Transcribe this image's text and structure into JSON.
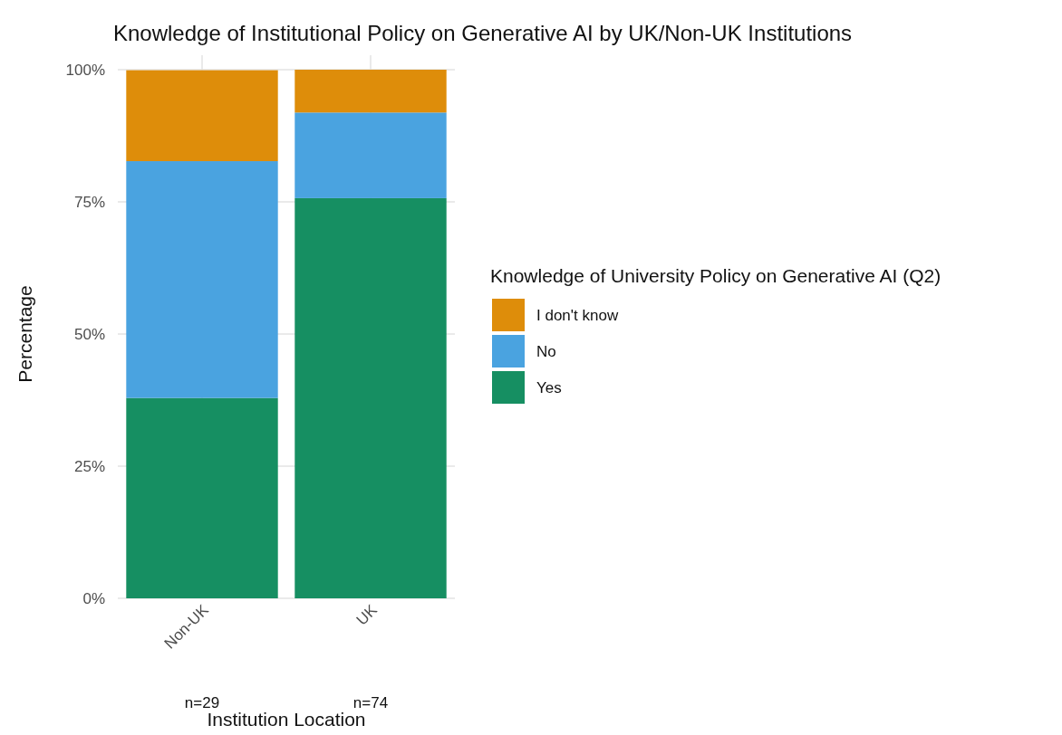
{
  "chart_data": {
    "type": "bar",
    "title": "Knowledge of Institutional Policy on Generative AI by UK/Non-UK Institutions",
    "xlabel": "Institution Location",
    "ylabel": "Percentage",
    "legend_title": "Knowledge of University Policy on Generative AI (Q2)",
    "categories": [
      "Non-UK",
      "UK"
    ],
    "stacked": true,
    "series": [
      {
        "name": "Yes",
        "color": "#168f62",
        "values": [
          37.9,
          75.7
        ]
      },
      {
        "name": "No",
        "color": "#4aa3e0",
        "values": [
          44.8,
          16.2
        ]
      },
      {
        "name": "I don't know",
        "color": "#de8d0a",
        "values": [
          17.2,
          8.1
        ]
      }
    ],
    "ylim": [
      0,
      100
    ],
    "yticks": [
      {
        "value": 0,
        "label": "0%"
      },
      {
        "value": 25,
        "label": "25%"
      },
      {
        "value": 50,
        "label": "50%"
      },
      {
        "value": 75,
        "label": "75%"
      },
      {
        "value": 100,
        "label": "100%"
      }
    ],
    "grid": true,
    "legend": "right",
    "annotations": [
      "n=29",
      "n=74"
    ]
  }
}
